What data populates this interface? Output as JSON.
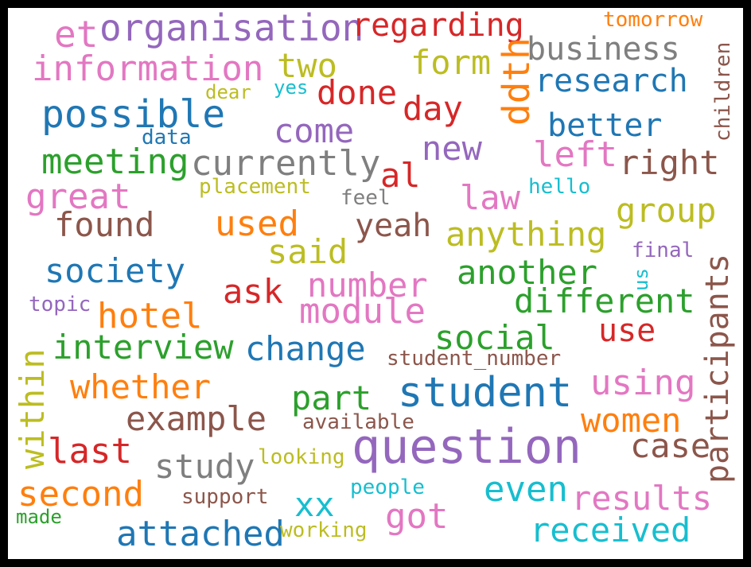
{
  "colors": {
    "background": "#ffffff",
    "frame": "#000000",
    "blue": "#1f77b4",
    "orange": "#ff7f0e",
    "green": "#2ca02c",
    "red": "#d62728",
    "purple": "#9467bd",
    "brown": "#8c564b",
    "pink": "#e377c2",
    "gray": "#7f7f7f",
    "olive": "#bcbd22",
    "cyan": "#17becf"
  },
  "words": [
    {
      "text": "organisation",
      "color": "purple"
    },
    {
      "text": "regarding",
      "color": "red"
    },
    {
      "text": "tomorrow",
      "color": "orange"
    },
    {
      "text": "et",
      "color": "pink"
    },
    {
      "text": "business",
      "color": "gray"
    },
    {
      "text": "information",
      "color": "pink"
    },
    {
      "text": "two",
      "color": "olive"
    },
    {
      "text": "form",
      "color": "olive"
    },
    {
      "text": "ddth",
      "color": "orange"
    },
    {
      "text": "research",
      "color": "blue"
    },
    {
      "text": "children",
      "color": "brown"
    },
    {
      "text": "dear",
      "color": "olive"
    },
    {
      "text": "yes",
      "color": "cyan"
    },
    {
      "text": "done",
      "color": "red"
    },
    {
      "text": "possible",
      "color": "blue"
    },
    {
      "text": "day",
      "color": "red"
    },
    {
      "text": "better",
      "color": "blue"
    },
    {
      "text": "come",
      "color": "purple"
    },
    {
      "text": "data",
      "color": "blue"
    },
    {
      "text": "new",
      "color": "purple"
    },
    {
      "text": "left",
      "color": "pink"
    },
    {
      "text": "meeting",
      "color": "green"
    },
    {
      "text": "currently",
      "color": "gray"
    },
    {
      "text": "right",
      "color": "brown"
    },
    {
      "text": "al",
      "color": "red"
    },
    {
      "text": "placement",
      "color": "olive"
    },
    {
      "text": "hello",
      "color": "cyan"
    },
    {
      "text": "great",
      "color": "pink"
    },
    {
      "text": "feel",
      "color": "gray"
    },
    {
      "text": "law",
      "color": "pink"
    },
    {
      "text": "group",
      "color": "olive"
    },
    {
      "text": "found",
      "color": "brown"
    },
    {
      "text": "used",
      "color": "orange"
    },
    {
      "text": "yeah",
      "color": "brown"
    },
    {
      "text": "anything",
      "color": "olive"
    },
    {
      "text": "said",
      "color": "olive"
    },
    {
      "text": "final",
      "color": "purple"
    },
    {
      "text": "participants",
      "color": "brown"
    },
    {
      "text": "society",
      "color": "blue"
    },
    {
      "text": "another",
      "color": "green"
    },
    {
      "text": "us",
      "color": "cyan"
    },
    {
      "text": "ask",
      "color": "red"
    },
    {
      "text": "number",
      "color": "pink"
    },
    {
      "text": "different",
      "color": "green"
    },
    {
      "text": "topic",
      "color": "purple"
    },
    {
      "text": "module",
      "color": "pink"
    },
    {
      "text": "hotel",
      "color": "orange"
    },
    {
      "text": "use",
      "color": "red"
    },
    {
      "text": "within",
      "color": "olive"
    },
    {
      "text": "social",
      "color": "green"
    },
    {
      "text": "interview",
      "color": "green"
    },
    {
      "text": "change",
      "color": "blue"
    },
    {
      "text": "student_number",
      "color": "brown"
    },
    {
      "text": "using",
      "color": "pink"
    },
    {
      "text": "whether",
      "color": "orange"
    },
    {
      "text": "student",
      "color": "blue"
    },
    {
      "text": "part",
      "color": "green"
    },
    {
      "text": "example",
      "color": "brown"
    },
    {
      "text": "available",
      "color": "brown"
    },
    {
      "text": "women",
      "color": "orange"
    },
    {
      "text": "case",
      "color": "brown"
    },
    {
      "text": "last",
      "color": "red"
    },
    {
      "text": "question",
      "color": "purple"
    },
    {
      "text": "study",
      "color": "gray"
    },
    {
      "text": "looking",
      "color": "olive"
    },
    {
      "text": "second",
      "color": "orange"
    },
    {
      "text": "even",
      "color": "cyan"
    },
    {
      "text": "results",
      "color": "pink"
    },
    {
      "text": "people",
      "color": "cyan"
    },
    {
      "text": "xx",
      "color": "cyan"
    },
    {
      "text": "support",
      "color": "brown"
    },
    {
      "text": "got",
      "color": "pink"
    },
    {
      "text": "made",
      "color": "green"
    },
    {
      "text": "attached",
      "color": "blue"
    },
    {
      "text": "working",
      "color": "olive"
    },
    {
      "text": "received",
      "color": "cyan"
    }
  ]
}
